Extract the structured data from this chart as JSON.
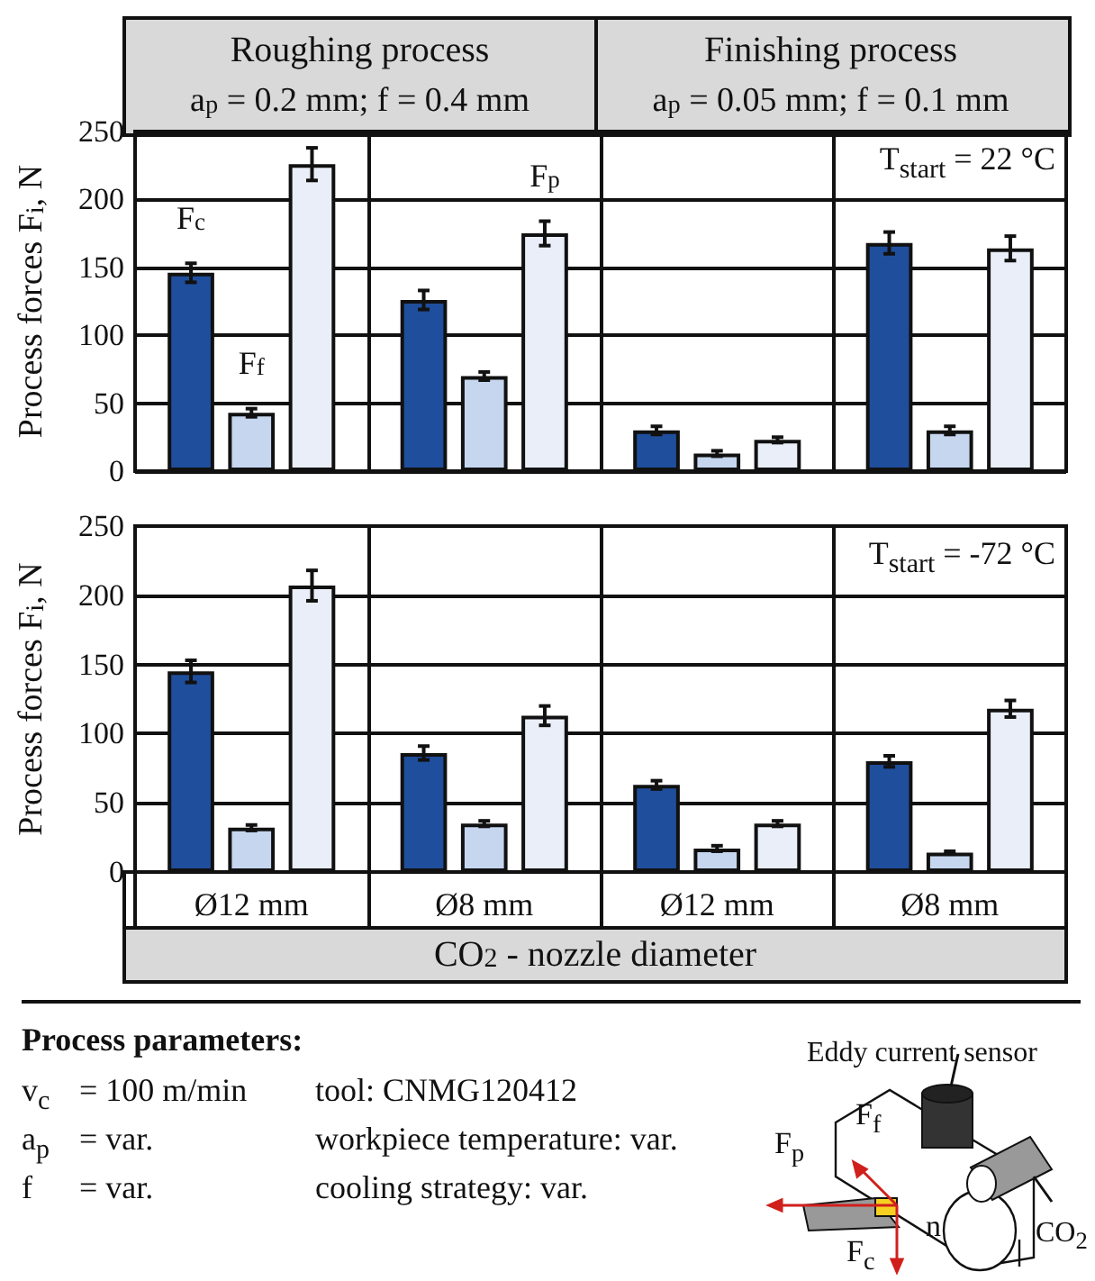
{
  "chart_data": [
    {
      "type": "bar",
      "categories": [
        null,
        null,
        null,
        null
      ],
      "ylabel": "Process forces F$_{i}$, N",
      "ylim": [
        0,
        250
      ],
      "yticks": [
        0,
        50,
        100,
        150,
        200,
        250
      ],
      "grid": true,
      "tick_labels": "y",
      "annotations": [
        "Roughing process",
        "a$_{p}$ = 0.2 mm; f = 0.4 mm",
        "Finishing process",
        "a$_{p}$ = 0.05 mm; f = 0.1 mm",
        "T$_{start}$ = 22 °C"
      ],
      "series": [
        {
          "name": "F$_{c}$",
          "color": "#1f4e9c",
          "values": [
            146,
            126,
            30,
            168
          ],
          "errors": [
            7,
            7,
            3,
            8
          ]
        },
        {
          "name": "F$_{f}$",
          "color": "#c6d6ef",
          "values": [
            43,
            70,
            13,
            30
          ],
          "errors": [
            3,
            3,
            2,
            3
          ]
        },
        {
          "name": "F$_{p}$",
          "color": "#e9eef8",
          "values": [
            226,
            175,
            23,
            164
          ],
          "errors": [
            12,
            9,
            2,
            9
          ]
        }
      ]
    },
    {
      "type": "bar",
      "categories": [
        "Ø12 mm",
        "Ø8 mm",
        "Ø12 mm",
        "Ø8 mm"
      ],
      "ylabel": "Process forces F$_{i}$, N",
      "xlabel": "CO$_{2}$ - nozzle diameter",
      "ylim": [
        0,
        250
      ],
      "yticks": [
        0,
        50,
        100,
        150,
        200,
        250
      ],
      "grid": true,
      "annotations": [
        "T$_{start}$ = -72 °C"
      ],
      "series": [
        {
          "color": "#1f4e9c",
          "values": [
            145,
            86,
            63,
            80
          ],
          "errors": [
            8,
            5,
            3,
            4
          ]
        },
        {
          "color": "#c6d6ef",
          "values": [
            32,
            35,
            17,
            14
          ],
          "errors": [
            2,
            2,
            2,
            1
          ]
        },
        {
          "color": "#e9eef8",
          "values": [
            207,
            113,
            35,
            118
          ],
          "errors": [
            11,
            7,
            2,
            6
          ]
        }
      ]
    },
    {
      "type": "other",
      "title": "Process parameters:",
      "annotations": [
        "v$_{c}$",
        "= 100 m/min",
        "tool: CNMG120412",
        "a$_{p}$",
        "= var.",
        "workpiece temperature: var.",
        "f",
        "= var.",
        "cooling strategy: var.",
        "Eddy current sensor",
        "F$_{f}$",
        "F$_{p}$",
        "F$_{c}$",
        "n",
        "CO$_{2}$"
      ]
    }
  ]
}
